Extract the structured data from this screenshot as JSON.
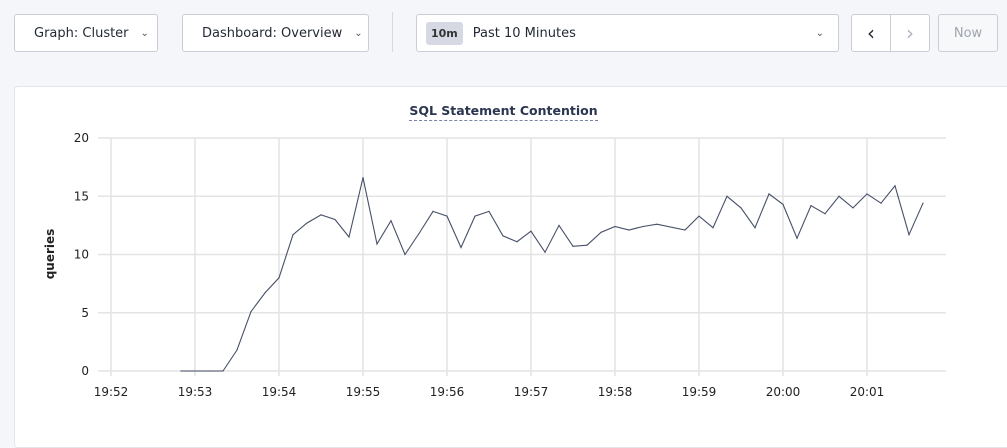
{
  "toolbar": {
    "graph_label": "Graph: Cluster",
    "dashboard_label": "Dashboard: Overview",
    "time_badge": "10m",
    "time_range": "Past 10 Minutes",
    "prev_icon": "chevron-left-icon",
    "next_icon": "chevron-right-icon",
    "now_label": "Now"
  },
  "chart_data": {
    "type": "line",
    "title": "SQL Statement Contention",
    "ylabel": "queries",
    "xlabel": "",
    "ylim": [
      0,
      20
    ],
    "yticks": [
      "0",
      "5",
      "10",
      "15",
      "20"
    ],
    "xticks": [
      "19:52",
      "19:53",
      "19:54",
      "19:55",
      "19:56",
      "19:57",
      "19:58",
      "19:59",
      "20:00",
      "20:01"
    ],
    "grid": true,
    "line_color": "#475068",
    "x": [
      "19:52:50",
      "19:53:00",
      "19:53:10",
      "19:53:20",
      "19:53:30",
      "19:53:40",
      "19:53:50",
      "19:54:00",
      "19:54:10",
      "19:54:20",
      "19:54:30",
      "19:54:40",
      "19:54:50",
      "19:55:00",
      "19:55:10",
      "19:55:20",
      "19:55:30",
      "19:55:40",
      "19:55:50",
      "19:56:00",
      "19:56:10",
      "19:56:20",
      "19:56:30",
      "19:56:40",
      "19:56:50",
      "19:57:00",
      "19:57:10",
      "19:57:20",
      "19:57:30",
      "19:57:40",
      "19:57:50",
      "19:58:00",
      "19:58:10",
      "19:58:20",
      "19:58:30",
      "19:58:50",
      "19:59:00",
      "19:59:10",
      "19:59:20",
      "19:59:30",
      "19:59:40",
      "19:59:50",
      "20:00:00",
      "20:00:10",
      "20:00:20",
      "20:00:30",
      "20:00:40",
      "20:00:50",
      "20:01:00",
      "20:01:10",
      "20:01:20",
      "20:01:30",
      "20:01:40"
    ],
    "values": [
      0,
      0,
      0,
      0,
      1.8,
      5.1,
      6.7,
      8,
      11.7,
      12.7,
      13.4,
      13,
      11.5,
      16.6,
      10.9,
      12.9,
      10,
      11.8,
      13.7,
      13.3,
      10.6,
      13.3,
      13.7,
      11.6,
      11.1,
      12,
      10.2,
      12.5,
      10.7,
      10.8,
      11.9,
      12.4,
      12.1,
      12.4,
      12.6,
      12.1,
      13.3,
      12.3,
      15,
      14,
      12.3,
      15.2,
      14.3,
      11.4,
      14.2,
      13.5,
      15,
      14,
      15.2,
      14.4,
      15.9,
      11.7,
      14.4
    ]
  }
}
